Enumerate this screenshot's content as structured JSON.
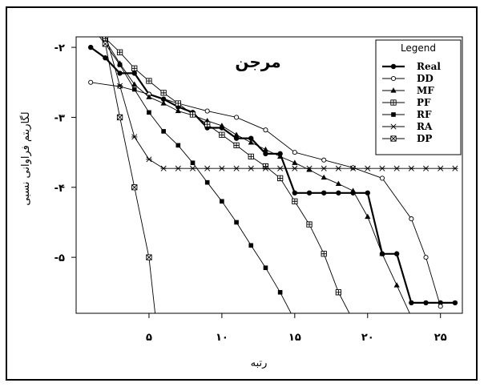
{
  "chart_data": {
    "type": "line",
    "title": "مرجن",
    "xlabel": "رتبه",
    "ylabel": "لگاریتم فراوانی نسبی",
    "xlim": [
      0,
      26.5
    ],
    "ylim": [
      -5.8,
      -1.85
    ],
    "x_ticks": [
      5,
      10,
      15,
      20,
      25
    ],
    "x_tick_labels": [
      "۵",
      "۱۰",
      "۱۵",
      "۲۰",
      "۲۵"
    ],
    "y_ticks": [
      -2,
      -3,
      -4,
      -5
    ],
    "y_tick_labels": [
      "-۲",
      "-۳",
      "-۴",
      "-۵"
    ],
    "grid": false,
    "legend_title": "Legend",
    "legend_position": "top-right",
    "series": [
      {
        "name": "Real",
        "marker": "filled-circle",
        "x": [
          1,
          2,
          3,
          4,
          5,
          6,
          7,
          8,
          9,
          10,
          11,
          12,
          13,
          14,
          15,
          16,
          17,
          18,
          19,
          20,
          21,
          22,
          23,
          24,
          25,
          26
        ],
        "y": [
          -2.0,
          -2.15,
          -2.37,
          -2.37,
          -2.67,
          -2.74,
          -2.85,
          -2.93,
          -3.15,
          -3.15,
          -3.3,
          -3.3,
          -3.52,
          -3.52,
          -4.08,
          -4.08,
          -4.08,
          -4.08,
          -4.08,
          -4.08,
          -4.95,
          -4.95,
          -5.65,
          -5.65,
          -5.65,
          -5.65
        ]
      },
      {
        "name": "DD",
        "marker": "open-circle",
        "x": [
          1,
          3,
          5,
          7,
          9,
          11,
          13,
          15,
          17,
          19,
          21,
          23,
          24,
          25
        ],
        "y": [
          -2.5,
          -2.56,
          -2.67,
          -2.8,
          -2.91,
          -3.0,
          -3.18,
          -3.5,
          -3.61,
          -3.72,
          -3.87,
          -4.45,
          -5.0,
          -5.7
        ]
      },
      {
        "name": "MF",
        "marker": "filled-triangle",
        "x": [
          1,
          2,
          3,
          4,
          5,
          6,
          7,
          8,
          9,
          10,
          11,
          12,
          13,
          14,
          15,
          16,
          17,
          18,
          19,
          20,
          21,
          22,
          23
        ],
        "y": [
          -1.7,
          -1.9,
          -2.23,
          -2.53,
          -2.71,
          -2.8,
          -2.91,
          -2.97,
          -3.05,
          -3.12,
          -3.25,
          -3.36,
          -3.46,
          -3.56,
          -3.65,
          -3.75,
          -3.86,
          -3.95,
          -4.05,
          -4.42,
          -4.95,
          -5.4,
          -5.85
        ]
      },
      {
        "name": "PF",
        "marker": "boxed-plus",
        "x": [
          1,
          2,
          3,
          4,
          5,
          6,
          7,
          8,
          9,
          10,
          11,
          12,
          13,
          14,
          15,
          16,
          17,
          18,
          19,
          20
        ],
        "y": [
          -1.7,
          -1.87,
          -2.07,
          -2.3,
          -2.48,
          -2.65,
          -2.8,
          -2.96,
          -3.1,
          -3.25,
          -3.4,
          -3.56,
          -3.7,
          -3.87,
          -4.2,
          -4.53,
          -4.95,
          -5.5,
          -5.9,
          -6.4
        ]
      },
      {
        "name": "RF",
        "marker": "filled-square",
        "x": [
          1,
          2,
          3,
          4,
          5,
          6,
          7,
          8,
          9,
          10,
          11,
          12,
          13,
          14,
          15
        ],
        "y": [
          -1.7,
          -1.95,
          -2.25,
          -2.6,
          -2.93,
          -3.2,
          -3.4,
          -3.65,
          -3.93,
          -4.2,
          -4.5,
          -4.83,
          -5.15,
          -5.5,
          -5.9
        ]
      },
      {
        "name": "RA",
        "marker": "asterisk",
        "x": [
          1,
          2,
          3,
          4,
          5,
          6,
          7,
          8,
          9,
          10,
          11,
          12,
          13,
          14,
          15,
          16,
          17,
          18,
          19,
          20,
          21,
          22,
          23,
          24,
          25,
          26
        ],
        "y": [
          -1.2,
          -1.8,
          -2.55,
          -3.28,
          -3.6,
          -3.73,
          -3.73,
          -3.73,
          -3.73,
          -3.73,
          -3.73,
          -3.73,
          -3.73,
          -3.73,
          -3.73,
          -3.73,
          -3.73,
          -3.73,
          -3.73,
          -3.73,
          -3.73,
          -3.73,
          -3.73,
          -3.73,
          -3.73,
          -3.73
        ]
      },
      {
        "name": "DP",
        "marker": "boxed-x",
        "x": [
          1,
          2,
          3,
          4,
          5,
          6
        ],
        "y": [
          -1.55,
          -1.95,
          -3.0,
          -4.0,
          -5.0,
          -6.9
        ]
      }
    ]
  }
}
